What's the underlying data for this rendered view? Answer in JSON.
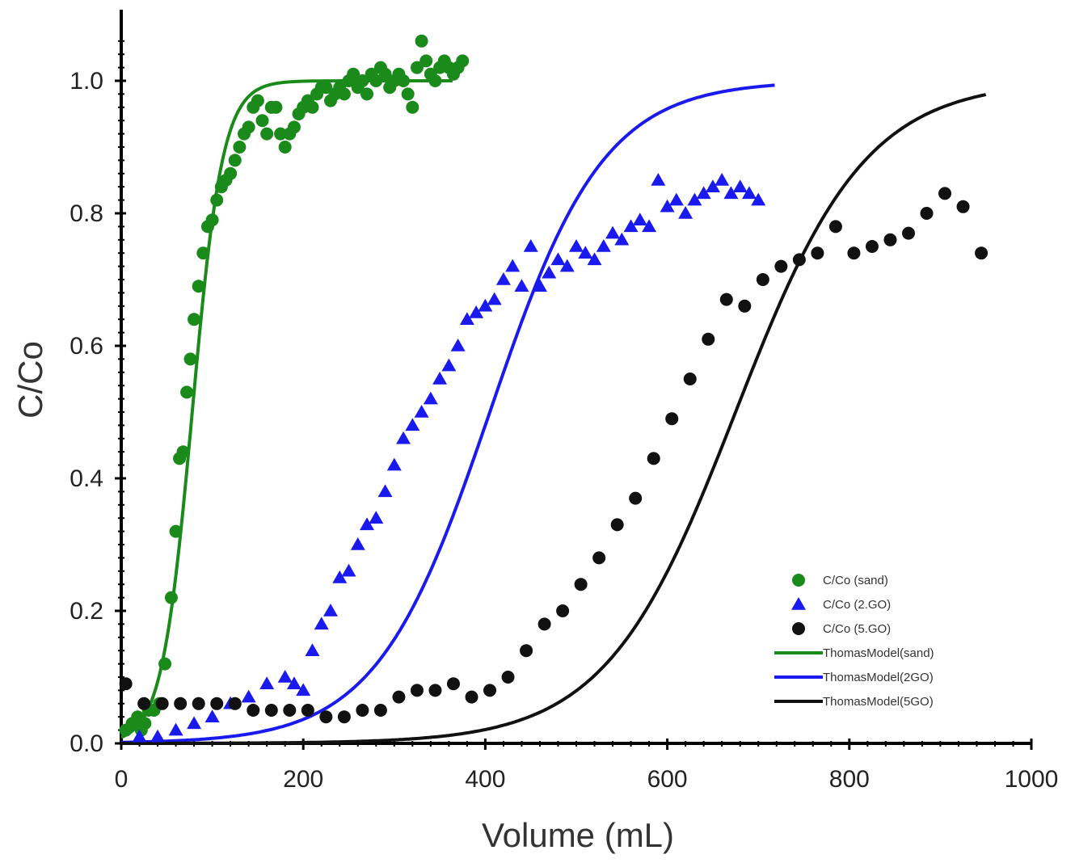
{
  "chart_data": {
    "type": "scatter",
    "xlabel": "Volume (mL)",
    "ylabel": "C/Co",
    "xlim": [
      0,
      1000
    ],
    "ylim": [
      0,
      1.1
    ],
    "xticks": [
      "0",
      "200",
      "400",
      "600",
      "800",
      "1000"
    ],
    "yticks": [
      "0.0",
      "0.2",
      "0.4",
      "0.6",
      "0.8",
      "1.0"
    ],
    "grid": false,
    "legend_position": "bottom-right",
    "series": [
      {
        "name": "C/Co (sand)",
        "kind": "scatter",
        "marker": "circle",
        "color": "#1a8a1a",
        "x": [
          5,
          12,
          18,
          22,
          26,
          30,
          36,
          42,
          48,
          55,
          60,
          64,
          68,
          72,
          76,
          80,
          85,
          90,
          95,
          100,
          105,
          110,
          115,
          120,
          125,
          130,
          135,
          140,
          145,
          150,
          155,
          160,
          165,
          170,
          175,
          180,
          185,
          190,
          195,
          200,
          205,
          210,
          215,
          220,
          225,
          230,
          235,
          240,
          245,
          250,
          255,
          260,
          265,
          270,
          275,
          280,
          285,
          290,
          295,
          300,
          305,
          310,
          315,
          320,
          325,
          330,
          335,
          340,
          345,
          350,
          355,
          360,
          365,
          370,
          375
        ],
        "y": [
          0.02,
          0.03,
          0.04,
          0.02,
          0.03,
          0.05,
          0.05,
          0.06,
          0.12,
          0.22,
          0.32,
          0.43,
          0.44,
          0.53,
          0.58,
          0.64,
          0.69,
          0.74,
          0.78,
          0.79,
          0.82,
          0.84,
          0.85,
          0.86,
          0.88,
          0.9,
          0.92,
          0.93,
          0.96,
          0.97,
          0.94,
          0.92,
          0.96,
          0.96,
          0.92,
          0.9,
          0.92,
          0.93,
          0.95,
          0.96,
          0.97,
          0.96,
          0.98,
          0.99,
          0.99,
          0.97,
          0.98,
          0.99,
          0.98,
          1.0,
          1.01,
          0.99,
          1.0,
          0.98,
          1.01,
          1.0,
          1.02,
          1.01,
          0.99,
          1.0,
          1.01,
          1.0,
          0.98,
          0.96,
          1.02,
          1.06,
          1.03,
          1.01,
          1.0,
          1.02,
          1.03,
          1.02,
          1.01,
          1.02,
          1.03
        ]
      },
      {
        "name": "C/Co (2.GO)",
        "kind": "scatter",
        "marker": "triangle",
        "color": "#1a1aee",
        "x": [
          20,
          40,
          60,
          80,
          100,
          120,
          140,
          160,
          180,
          190,
          200,
          210,
          220,
          230,
          240,
          250,
          260,
          270,
          280,
          290,
          300,
          310,
          320,
          330,
          340,
          350,
          360,
          370,
          380,
          390,
          400,
          410,
          420,
          430,
          440,
          450,
          460,
          470,
          480,
          490,
          500,
          510,
          520,
          530,
          540,
          550,
          560,
          570,
          580,
          590,
          600,
          610,
          620,
          630,
          640,
          650,
          660,
          670,
          680,
          690,
          700
        ],
        "y": [
          0.01,
          0.01,
          0.02,
          0.03,
          0.04,
          0.06,
          0.07,
          0.09,
          0.1,
          0.09,
          0.08,
          0.14,
          0.18,
          0.2,
          0.25,
          0.26,
          0.3,
          0.33,
          0.34,
          0.38,
          0.42,
          0.46,
          0.48,
          0.5,
          0.52,
          0.55,
          0.57,
          0.6,
          0.64,
          0.65,
          0.66,
          0.67,
          0.7,
          0.72,
          0.69,
          0.75,
          0.69,
          0.71,
          0.73,
          0.72,
          0.75,
          0.74,
          0.73,
          0.75,
          0.77,
          0.76,
          0.78,
          0.79,
          0.78,
          0.85,
          0.81,
          0.82,
          0.8,
          0.82,
          0.83,
          0.84,
          0.85,
          0.83,
          0.84,
          0.83,
          0.82
        ]
      },
      {
        "name": "C/Co (5.GO)",
        "kind": "scatter",
        "marker": "circle",
        "color": "#111111",
        "x": [
          5,
          25,
          45,
          65,
          85,
          105,
          125,
          145,
          165,
          185,
          205,
          225,
          245,
          265,
          285,
          305,
          325,
          345,
          365,
          385,
          405,
          425,
          445,
          465,
          485,
          505,
          525,
          545,
          565,
          585,
          605,
          625,
          645,
          665,
          685,
          705,
          725,
          745,
          765,
          785,
          805,
          825,
          845,
          865,
          885,
          905,
          925,
          945
        ],
        "y": [
          0.09,
          0.06,
          0.06,
          0.06,
          0.06,
          0.06,
          0.06,
          0.05,
          0.05,
          0.05,
          0.05,
          0.04,
          0.04,
          0.05,
          0.05,
          0.07,
          0.08,
          0.08,
          0.09,
          0.07,
          0.08,
          0.1,
          0.14,
          0.18,
          0.2,
          0.24,
          0.28,
          0.33,
          0.37,
          0.43,
          0.49,
          0.55,
          0.61,
          0.67,
          0.66,
          0.7,
          0.72,
          0.73,
          0.74,
          0.78,
          0.74,
          0.75,
          0.76,
          0.77,
          0.8,
          0.83,
          0.81,
          0.74
        ]
      },
      {
        "name": "ThomasModel(sand)",
        "kind": "line",
        "color": "#1a8a1a",
        "k": 0.06,
        "v50": 78,
        "x_range": [
          0,
          365
        ]
      },
      {
        "name": "ThomasModel(2GO)",
        "kind": "line",
        "color": "#1a1aee",
        "k": 0.016,
        "v50": 405,
        "x_range": [
          0,
          718
        ]
      },
      {
        "name": "ThomasModel(5GO)",
        "kind": "line",
        "color": "#111111",
        "k": 0.014,
        "v50": 675,
        "x_range": [
          0,
          950
        ]
      }
    ]
  }
}
